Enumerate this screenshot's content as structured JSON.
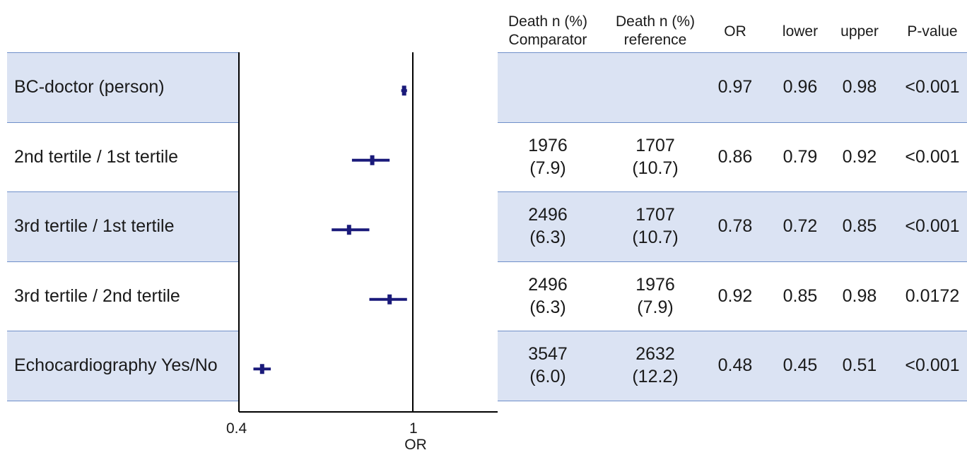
{
  "headers": {
    "comparator_l1": "Death n (%)",
    "comparator_l2": "Comparator",
    "reference_l1": "Death n (%)",
    "reference_l2": "reference",
    "or": "OR",
    "lower": "lower",
    "upper": "upper",
    "pvalue": "P-value"
  },
  "rows": [
    {
      "label": "BC-doctor (person)",
      "comp": "",
      "comp_pct": "",
      "ref": "",
      "ref_pct": "",
      "or": "0.97",
      "lower": "0.96",
      "upper": "0.98",
      "p": "<0.001",
      "shaded": true
    },
    {
      "label": "2nd tertile / 1st tertile",
      "comp": "1976",
      "comp_pct": "(7.9)",
      "ref": "1707",
      "ref_pct": "(10.7)",
      "or": "0.86",
      "lower": "0.79",
      "upper": "0.92",
      "p": "<0.001",
      "shaded": false
    },
    {
      "label": "3rd tertile / 1st tertile",
      "comp": "2496",
      "comp_pct": "(6.3)",
      "ref": "1707",
      "ref_pct": "(10.7)",
      "or": "0.78",
      "lower": "0.72",
      "upper": "0.85",
      "p": "<0.001",
      "shaded": true
    },
    {
      "label": "3rd tertile / 2nd tertile",
      "comp": "2496",
      "comp_pct": "(6.3)",
      "ref": "1976",
      "ref_pct": "(7.9)",
      "or": "0.92",
      "lower": "0.85",
      "upper": "0.98",
      "p": "0.0172",
      "shaded": false
    },
    {
      "label": "Echocardiography Yes/No",
      "comp": "3547",
      "comp_pct": "(6.0)",
      "ref": "2632",
      "ref_pct": "(12.2)",
      "or": "0.48",
      "lower": "0.45",
      "upper": "0.51",
      "p": "<0.001",
      "shaded": true
    }
  ],
  "chart_data": {
    "type": "forest",
    "xlabel": "OR",
    "xlim": [
      0.4,
      1.2
    ],
    "xticks": [
      "0.4",
      "1"
    ],
    "reference_line": 1,
    "series": [
      {
        "label": "BC-doctor (person)",
        "or": 0.97,
        "lower": 0.96,
        "upper": 0.98
      },
      {
        "label": "2nd tertile / 1st tertile",
        "or": 0.86,
        "lower": 0.79,
        "upper": 0.92
      },
      {
        "label": "3rd tertile / 1st tertile",
        "or": 0.78,
        "lower": 0.72,
        "upper": 0.85
      },
      {
        "label": "3rd tertile / 2nd tertile",
        "or": 0.92,
        "lower": 0.85,
        "upper": 0.98
      },
      {
        "label": "Echocardiography Yes/No",
        "or": 0.48,
        "lower": 0.45,
        "upper": 0.51
      }
    ],
    "marker_color": "#1a1a7a",
    "band_color": "#dbe3f3"
  }
}
